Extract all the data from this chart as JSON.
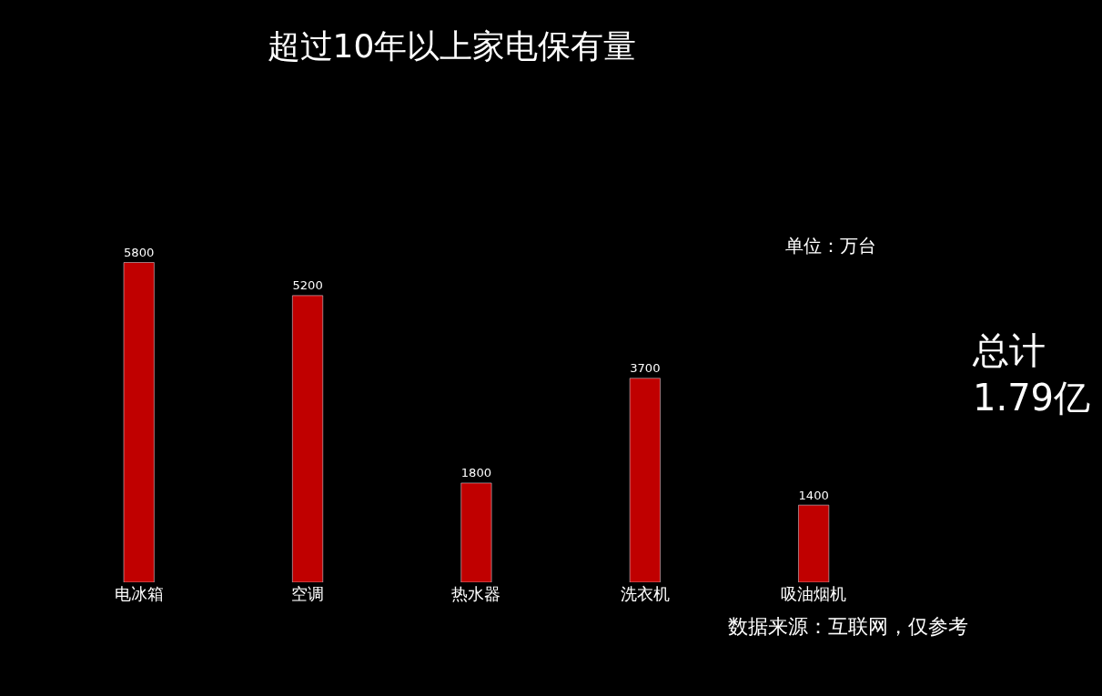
{
  "chart_data": {
    "type": "bar",
    "title": "超过10年以上家电保有量",
    "categories": [
      "电冰箱",
      "空调",
      "热水器",
      "洗衣机",
      "吸油烟机"
    ],
    "values": [
      5800,
      5200,
      1800,
      3700,
      1400
    ],
    "color": "#c00000",
    "data_labels": true,
    "grid": false,
    "legend": false,
    "annotations": [
      "单位：万台",
      "总计\n1.79亿",
      "数据来源：互联网，仅参考"
    ]
  }
}
